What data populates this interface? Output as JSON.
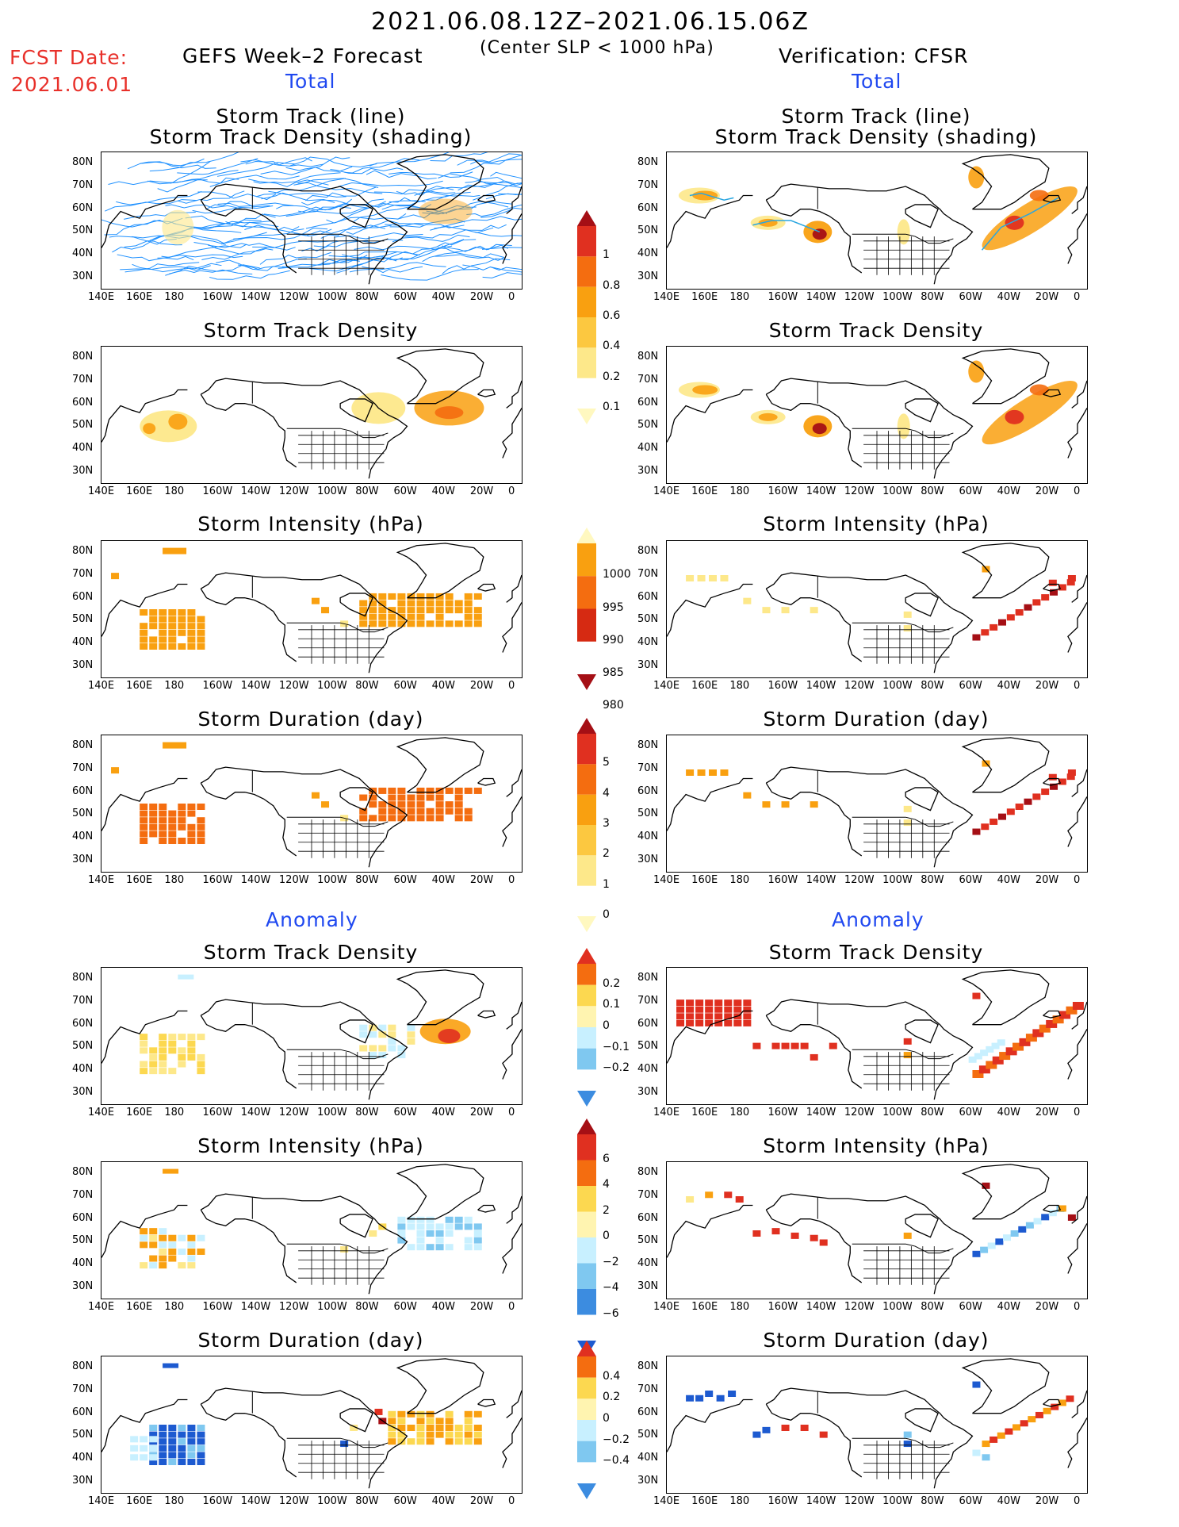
{
  "header": {
    "date_range": "2021.06.08.12Z–2021.06.15.06Z",
    "criterion": "(Center SLP < 1000 hPa)",
    "fcst_label": "FCST Date:",
    "fcst_date": "2021.06.01",
    "left_model": "GEFS Week–2 Forecast",
    "right_model": "Verification: CFSR"
  },
  "sections": {
    "total": "Total",
    "anomaly": "Anomaly"
  },
  "panel_titles": {
    "track_line": "Storm Track (line)",
    "track_shading": "Storm Track Density (shading)",
    "density": "Storm Track Density",
    "intensity": "Storm Intensity (hPa)",
    "duration": "Storm Duration (day)"
  },
  "axes": {
    "lat_ticks": [
      "80N",
      "70N",
      "60N",
      "50N",
      "40N",
      "30N"
    ],
    "lon_ticks": [
      "140E",
      "160E",
      "180",
      "160W",
      "140W",
      "120W",
      "100W",
      "80W",
      "60W",
      "40W",
      "20W",
      "0"
    ]
  },
  "colorbars": {
    "density_total": {
      "labels": [
        "1",
        "0.8",
        "0.6",
        "0.4",
        "0.2",
        "0.1"
      ],
      "colors": [
        "#a50f15",
        "#e03020",
        "#f46d10",
        "#f9a010",
        "#fcc840",
        "#fde88a",
        "#fff8c0"
      ]
    },
    "intensity_total": {
      "labels": [
        "1000",
        "995",
        "990",
        "985",
        "980"
      ],
      "colors": [
        "#fff8c0",
        "#f9a010",
        "#f46d10",
        "#d62a12",
        "#a50f15"
      ]
    },
    "duration_total": {
      "labels": [
        "5",
        "4",
        "3",
        "2",
        "1",
        "0"
      ],
      "colors": [
        "#a50f15",
        "#e03020",
        "#f46d10",
        "#f9a010",
        "#fcc840",
        "#fde88a",
        "#fff8c0"
      ]
    },
    "density_anom": {
      "labels": [
        "0.2",
        "0.1",
        "0",
        "−0.1",
        "−0.2"
      ],
      "colors": [
        "#e03020",
        "#f46d10",
        "#fcd850",
        "#fff4b0",
        "#c8f0ff",
        "#7fc8f0",
        "#3c8ce0"
      ]
    },
    "intensity_anom": {
      "labels": [
        "6",
        "4",
        "2",
        "0",
        "−2",
        "−4",
        "−6"
      ],
      "colors": [
        "#a50f15",
        "#e03020",
        "#f46d10",
        "#fcd850",
        "#fff4b0",
        "#c8f0ff",
        "#7fc8f0",
        "#3c8ce0",
        "#1d5ad0"
      ]
    },
    "duration_anom": {
      "labels": [
        "0.4",
        "0.2",
        "0",
        "−0.2",
        "−0.4"
      ],
      "colors": [
        "#e03020",
        "#f46d10",
        "#fcd850",
        "#fff4b0",
        "#c8f0ff",
        "#7fc8f0",
        "#3c8ce0"
      ]
    }
  },
  "palette": {
    "track_line": "#1e90ff",
    "light_yellow": "#fde88a",
    "yellow": "#fcd850",
    "orange": "#f9a010",
    "dark_orange": "#f46d10",
    "red": "#e03020",
    "dark_red": "#a50f15",
    "light_blue": "#c8f0ff",
    "mid_blue": "#7fc8f0",
    "blue": "#1d5ad0"
  }
}
